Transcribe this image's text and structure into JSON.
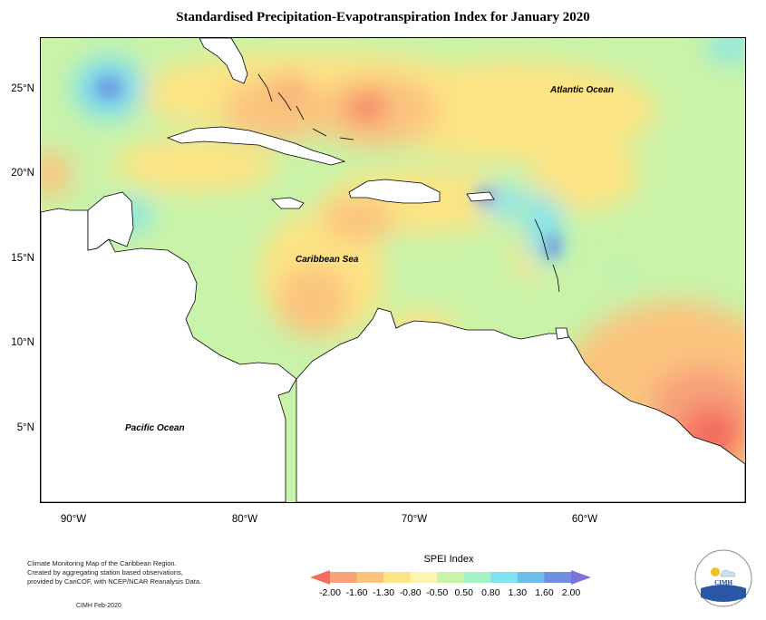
{
  "title": "Standardised Precipitation-Evapotranspiration Index for January 2020",
  "lat_labels": [
    "25°N",
    "20°N",
    "15°N",
    "10°N",
    "5°N"
  ],
  "lon_labels": [
    "90°W",
    "80°W",
    "70°W",
    "60°W"
  ],
  "map_labels": {
    "atlantic": "Atlantic Ocean",
    "caribbean": "Caribbean Sea",
    "pacific": "Pacific Ocean"
  },
  "credits": {
    "line1": "Climate Monitoring Map of the Caribbean Region.",
    "line2": "Created by aggregating station based observations,",
    "line3": "provided by CariCOF, with NCEP/NCAR Reanalysis Data.",
    "footer": "CIMH Feb-2020"
  },
  "legend": {
    "title": "SPEI Index",
    "ticks": [
      "-2.00",
      "-1.60",
      "-1.30",
      "-0.80",
      "-0.50",
      "0.50",
      "0.80",
      "1.30",
      "1.60",
      "2.00"
    ],
    "colors": [
      "#f46d5f",
      "#f7a27a",
      "#fbc47e",
      "#fde484",
      "#fdf4b2",
      "#c9f3a8",
      "#a5f2c9",
      "#7fe3f0",
      "#6dbde8",
      "#6e8ee0",
      "#7b74d8"
    ]
  },
  "logo_text": "CIMH"
}
